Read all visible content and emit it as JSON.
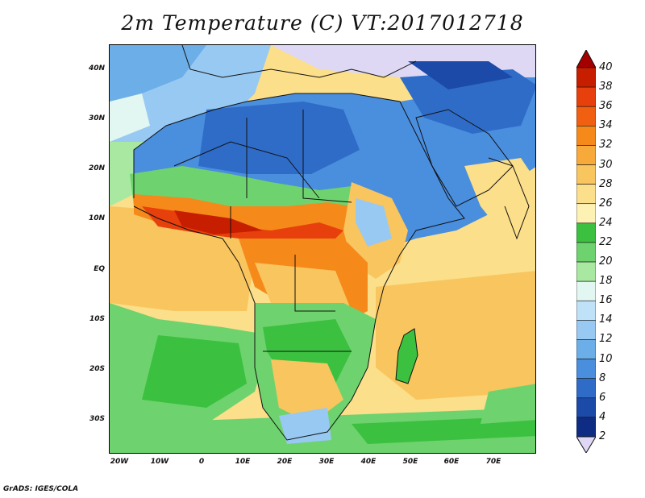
{
  "title": "2m Temperature (C) VT:2017012718",
  "footer": "GrADS: IGES/COLA",
  "lat_labels": [
    "40N",
    "30N",
    "20N",
    "10N",
    "EQ",
    "10S",
    "20S",
    "30S"
  ],
  "lon_labels": [
    "20W",
    "10W",
    "0",
    "10E",
    "20E",
    "30E",
    "40E",
    "50E",
    "60E",
    "70E"
  ],
  "colorbar": {
    "labels": [
      "40",
      "38",
      "36",
      "34",
      "32",
      "30",
      "28",
      "26",
      "24",
      "22",
      "20",
      "18",
      "16",
      "14",
      "12",
      "10",
      "8",
      "6",
      "4",
      "2"
    ],
    "colors": [
      "#a50000",
      "#c81e00",
      "#e8400c",
      "#f06010",
      "#f58a1a",
      "#f7a93a",
      "#f9c55e",
      "#fbdf8a",
      "#fdf2b4",
      "#3cc040",
      "#6ed36e",
      "#a8e8a0",
      "#e2f6f2",
      "#c0e2f8",
      "#98c9f2",
      "#6caee8",
      "#4a8ede",
      "#2f6cc8",
      "#1b4aa8",
      "#0e2c84",
      "#ded8f4"
    ]
  },
  "map_colors": {
    "ocean_tropical": "#fbdf8a",
    "ocean_warm": "#f9c55e",
    "ocean_cool": "#6ed36e",
    "ocean_cold": "#98c9f2",
    "sahel_hot": "#e8400c",
    "sahara": "#4a8ede",
    "north": "#2f6cc8",
    "snow": "#ded8f4",
    "green": "#3cc040",
    "pale": "#e2f6f2"
  }
}
